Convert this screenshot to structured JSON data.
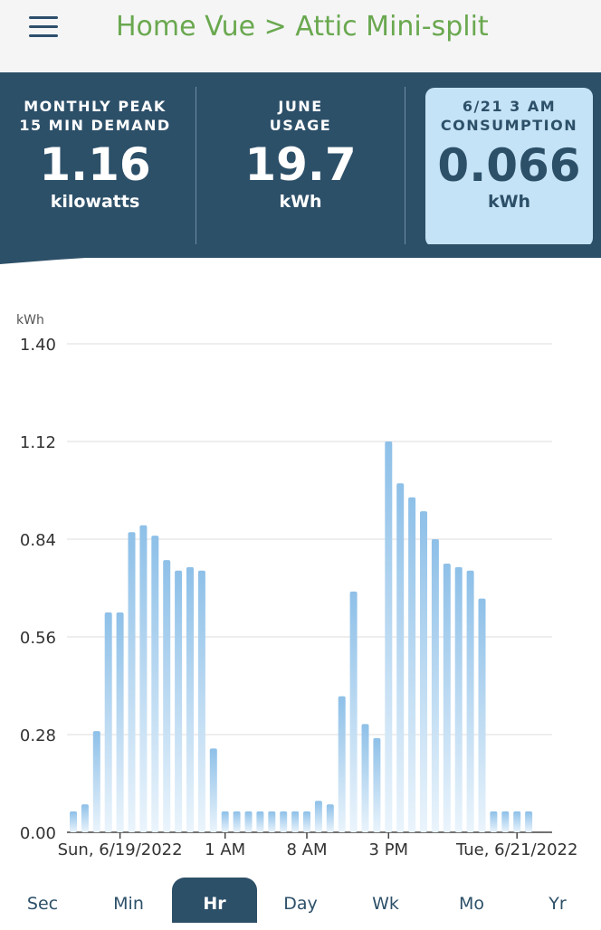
{
  "header": {
    "title": "Home Vue > Attic Mini-split",
    "menu_icon": "hamburger-menu-icon"
  },
  "stats": [
    {
      "label_line1": "MONTHLY PEAK",
      "label_line2": "15 MIN DEMAND",
      "value": "1.16",
      "unit": "kilowatts"
    },
    {
      "label_line1": "JUNE",
      "label_line2": "USAGE",
      "value": "19.7",
      "unit": "kWh"
    },
    {
      "label_line1": "6/21 3 AM",
      "label_line2": "CONSUMPTION",
      "value": "0.066",
      "unit": "kWh"
    }
  ],
  "tabs": [
    {
      "label": "Sec"
    },
    {
      "label": "Min"
    },
    {
      "label": "Hr",
      "selected": true
    },
    {
      "label": "Day"
    },
    {
      "label": "Wk"
    },
    {
      "label": "Mo"
    },
    {
      "label": "Yr"
    }
  ],
  "colors": {
    "accent_green": "#6aa84f",
    "panel_blue": "#2d5069",
    "active_stat_bg": "#c5e3f6",
    "bar_top": "#8ec0e8"
  },
  "chart_data": {
    "type": "bar",
    "ylabel": "kWh",
    "ylim": [
      0,
      1.4
    ],
    "yticks": [
      "0.00",
      "0.28",
      "0.56",
      "0.84",
      "1.12",
      "1.40"
    ],
    "xtick_labels": [
      "Sun, 6/19/2022",
      "1 AM",
      "8 AM",
      "3 PM",
      "Tue, 6/21/2022"
    ],
    "grid": true,
    "values": [
      0.06,
      0.08,
      0.29,
      0.63,
      0.63,
      0.86,
      0.88,
      0.85,
      0.78,
      0.75,
      0.76,
      0.75,
      0.24,
      0.06,
      0.06,
      0.06,
      0.06,
      0.06,
      0.06,
      0.06,
      0.06,
      0.09,
      0.08,
      0.39,
      0.69,
      0.31,
      0.27,
      1.12,
      1.0,
      0.96,
      0.92,
      0.84,
      0.77,
      0.76,
      0.75,
      0.67,
      0.06,
      0.06,
      0.06,
      0.06
    ]
  }
}
